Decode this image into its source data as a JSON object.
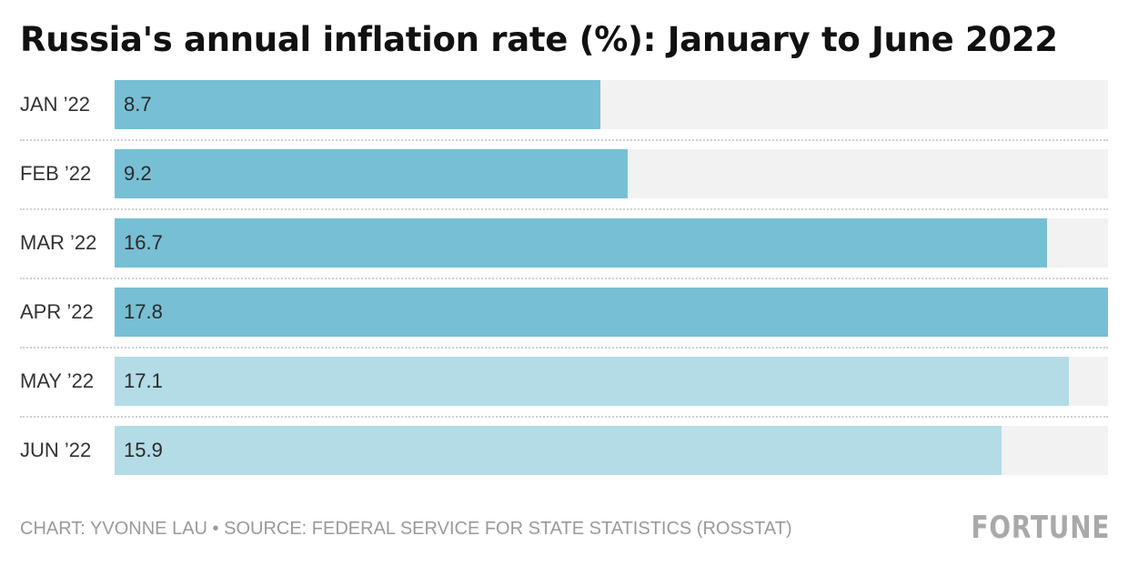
{
  "title": "Russia's annual inflation rate (%): January to June 2022",
  "footer": {
    "credit": "CHART: YVONNE LAU • SOURCE: FEDERAL SERVICE FOR STATE STATISTICS (ROSSTAT)"
  },
  "logo": "FORTUNE",
  "colors": {
    "bar_dark": "#77bfd4",
    "bar_light": "#b3dce6",
    "track": "#f2f2f2"
  },
  "chart_data": {
    "type": "bar",
    "orientation": "horizontal",
    "title": "Russia's annual inflation rate (%): January to June 2022",
    "categories": [
      "JAN ’22",
      "FEB ’22",
      "MAR ’22",
      "APR ’22",
      "MAY ’22",
      "JUN ’22"
    ],
    "values": [
      8.7,
      9.2,
      16.7,
      17.8,
      17.1,
      15.9
    ],
    "value_labels": [
      "8.7",
      "9.2",
      "16.7",
      "17.8",
      "17.1",
      "15.9"
    ],
    "bar_shade": [
      "dark",
      "dark",
      "dark",
      "dark",
      "light",
      "light"
    ],
    "xlim": [
      0,
      17.8
    ],
    "grid": false,
    "legend": "none"
  }
}
